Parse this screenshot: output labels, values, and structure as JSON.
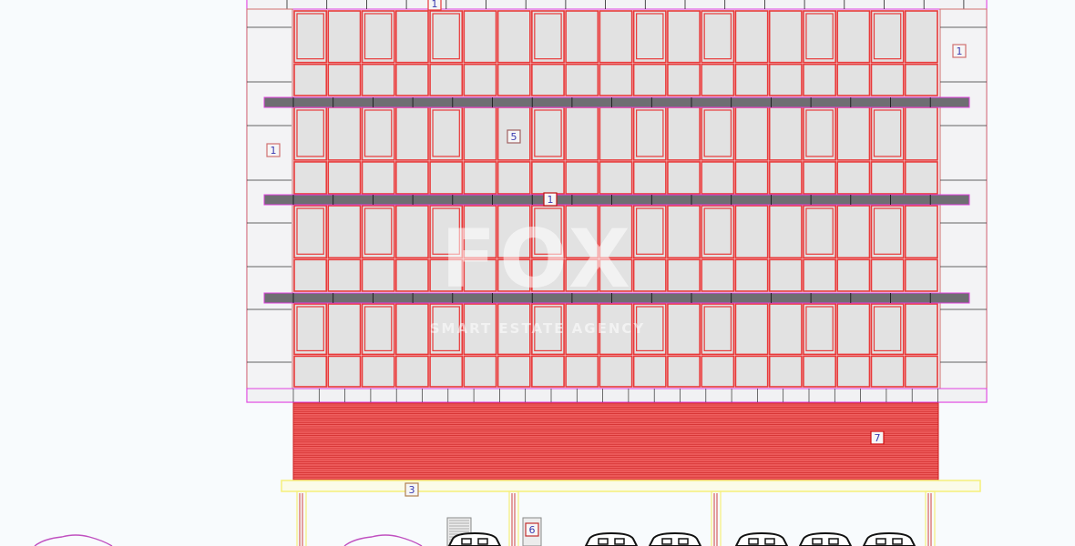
{
  "drawing": {
    "tags": [
      {
        "id": "top-center",
        "text": "1"
      },
      {
        "id": "right",
        "text": "1"
      },
      {
        "id": "left",
        "text": "1"
      },
      {
        "id": "center-slab",
        "text": "1"
      },
      {
        "id": "glazing",
        "text": "5"
      },
      {
        "id": "cladding",
        "text": "7"
      },
      {
        "id": "beam",
        "text": "3"
      },
      {
        "id": "door",
        "text": "6"
      }
    ],
    "colors": {
      "background": "#f8fbfd",
      "outline": "#e040e0",
      "glazing_frame": "#e83a3a",
      "glass": "#e2e2e2",
      "slab": "#6e6e72",
      "cladding": "#f06060",
      "beam": "#f5f07a",
      "tag_text": "#3b3bb0",
      "car_outline": "#c050c0"
    }
  },
  "watermark": {
    "brand": "FOX",
    "tagline": "SMART ESTATE AGENCY"
  }
}
